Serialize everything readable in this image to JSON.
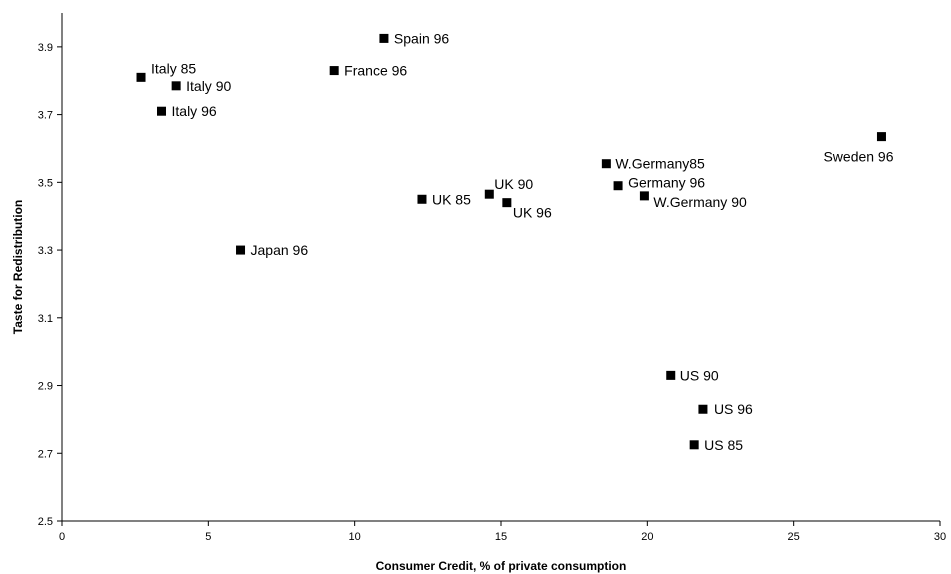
{
  "chart_data": {
    "type": "scatter",
    "title": "",
    "xlabel": "Consumer Credit, % of private consumption",
    "ylabel": "Taste for Redistribution",
    "xlim": [
      0,
      30
    ],
    "ylim": [
      2.5,
      4.0
    ],
    "xticks": [
      0,
      5,
      10,
      15,
      20,
      25,
      30
    ],
    "yticks": [
      2.5,
      2.7,
      2.9,
      3.1,
      3.3,
      3.5,
      3.7,
      3.9
    ],
    "grid": false,
    "legend": "none",
    "marker_color": "#000000",
    "points": [
      {
        "label": "Italy 85",
        "x": 2.7,
        "y": 3.81
      },
      {
        "label": "Italy 90",
        "x": 3.9,
        "y": 3.785
      },
      {
        "label": "Italy 96",
        "x": 3.4,
        "y": 3.71
      },
      {
        "label": "Spain 96",
        "x": 11.0,
        "y": 3.925
      },
      {
        "label": "France 96",
        "x": 9.3,
        "y": 3.83
      },
      {
        "label": "Japan 96",
        "x": 6.1,
        "y": 3.3
      },
      {
        "label": "UK 85",
        "x": 12.3,
        "y": 3.45
      },
      {
        "label": "UK 90",
        "x": 14.6,
        "y": 3.465
      },
      {
        "label": "UK 96",
        "x": 15.2,
        "y": 3.44
      },
      {
        "label": "W.Germany85",
        "x": 18.6,
        "y": 3.555
      },
      {
        "label": "Germany 96",
        "x": 19.0,
        "y": 3.49
      },
      {
        "label": "W.Germany 90",
        "x": 19.9,
        "y": 3.46
      },
      {
        "label": "Sweden 96",
        "x": 28.0,
        "y": 3.635
      },
      {
        "label": "US 90",
        "x": 20.8,
        "y": 2.93
      },
      {
        "label": "US 96",
        "x": 21.9,
        "y": 2.83
      },
      {
        "label": "US 85",
        "x": 21.6,
        "y": 2.725
      }
    ]
  }
}
